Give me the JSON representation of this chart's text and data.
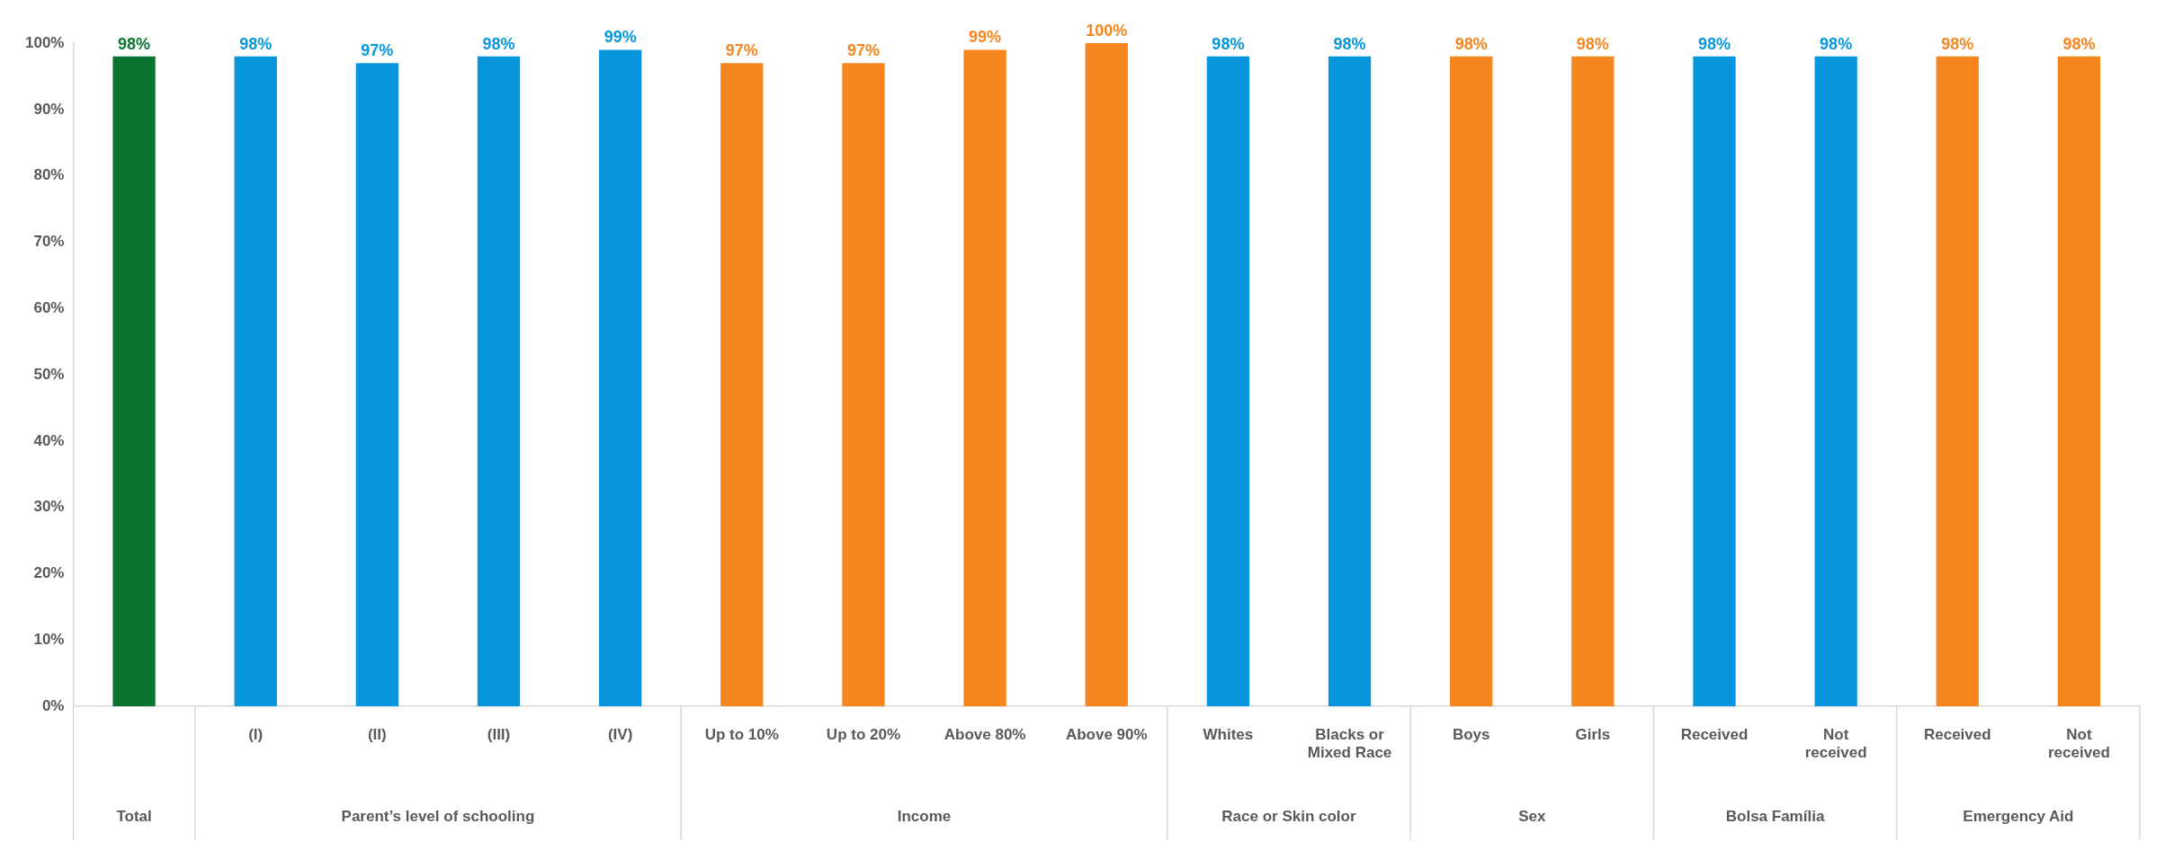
{
  "chart_data": {
    "type": "bar",
    "categories": [
      null,
      "(I)",
      "(II)",
      "(III)",
      "(IV)",
      "Up to 10%",
      "Up to 20%",
      "Above 80%",
      "Above 90%",
      "Whites",
      "Blacks or Mixed Race",
      "Boys",
      "Girls",
      "Received",
      "Not received",
      "Received",
      "Not received"
    ],
    "values": [
      98,
      98,
      97,
      98,
      99,
      97,
      97,
      99,
      100,
      98,
      98,
      98,
      98,
      98,
      98,
      98,
      98
    ],
    "colors": [
      "#0b7330",
      "#0796dc",
      "#0796dc",
      "#0796dc",
      "#0796dc",
      "#f5851f",
      "#f5851f",
      "#f5851f",
      "#f5851f",
      "#0796dc",
      "#0796dc",
      "#f5851f",
      "#f5851f",
      "#0796dc",
      "#0796dc",
      "#f5851f",
      "#f5851f"
    ],
    "annotations": [
      "Total",
      "Parent’s level of schooling",
      "Income",
      "Race or Skin color",
      "Sex",
      "Bolsa Família",
      "Emergency Aid"
    ],
    "ylim": [
      0,
      100
    ],
    "yticks": [
      {
        "value": 0,
        "label": "0%"
      },
      {
        "value": 10,
        "label": "10%"
      },
      {
        "value": 20,
        "label": "20%"
      },
      {
        "value": 30,
        "label": "30%"
      },
      {
        "value": 40,
        "label": "40%"
      },
      {
        "value": 50,
        "label": "50%"
      },
      {
        "value": 60,
        "label": "60%"
      },
      {
        "value": 70,
        "label": "70%"
      },
      {
        "value": 80,
        "label": "80%"
      },
      {
        "value": 90,
        "label": "90%"
      },
      {
        "value": 100,
        "label": "100%"
      }
    ],
    "value_labels": [
      "98%",
      "98%",
      "97%",
      "98%",
      "99%",
      "97%",
      "97%",
      "99%",
      "100%",
      "98%",
      "98%",
      "98%",
      "98%",
      "98%",
      "98%",
      "98%",
      "98%"
    ],
    "grid": false,
    "legend": false
  }
}
